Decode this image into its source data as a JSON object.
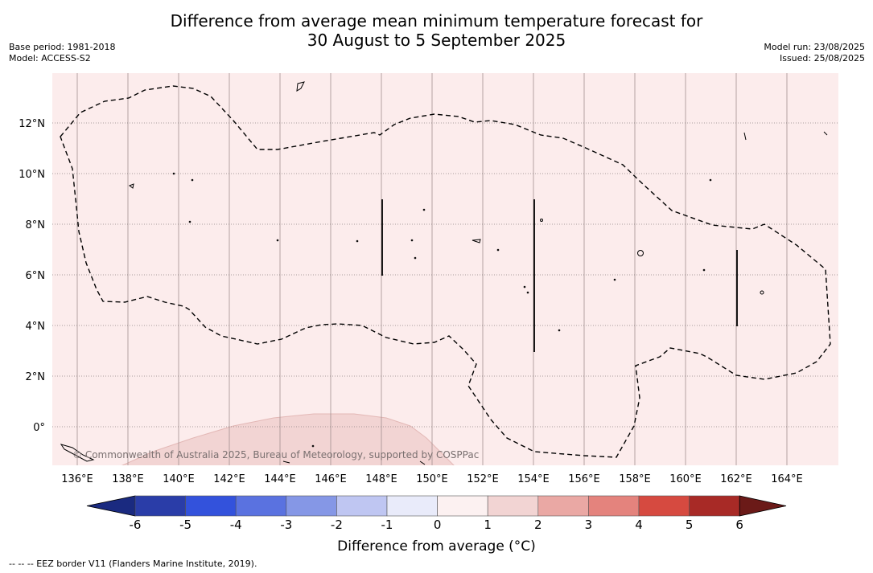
{
  "title_line1": "Difference from average mean minimum temperature forecast for",
  "title_line2": "30 August to 5 September 2025",
  "base_period": "Base period: 1981-2018",
  "model": "Model: ACCESS-S2",
  "model_run": "Model run: 23/08/2025",
  "issued": "Issued: 25/08/2025",
  "copyright": "© Commonwealth of Australia 2025, Bureau of Meteorology, supported by COSPPac",
  "lon_ticks": [
    "136°E",
    "138°E",
    "140°E",
    "142°E",
    "144°E",
    "146°E",
    "148°E",
    "150°E",
    "152°E",
    "154°E",
    "156°E",
    "158°E",
    "160°E",
    "162°E",
    "164°E"
  ],
  "lat_ticks": [
    "12°N",
    "10°N",
    "8°N",
    "6°N",
    "4°N",
    "2°N",
    "0°"
  ],
  "colorbar": {
    "label": "Difference from average (°C)",
    "ticks": [
      "-6",
      "-5",
      "-4",
      "-3",
      "-2",
      "-1",
      "0",
      "1",
      "2",
      "3",
      "4",
      "5",
      "6"
    ],
    "colors": [
      "#2a3da8",
      "#3352dc",
      "#5a72e0",
      "#8597e6",
      "#bfc6f2",
      "#e9ebfa",
      "#fcf1f1",
      "#f2d4d3",
      "#eaa8a4",
      "#e4837d",
      "#d64a40",
      "#a82a26"
    ],
    "under_color": "#1a2a80",
    "over_color": "#6b1a18"
  },
  "map": {
    "background_color": "#fcecec",
    "anomaly_region_color": "#f2d4d3"
  },
  "legend_note": "--  --  -- EEZ border V11 (Flanders Marine Institute, 2019)."
}
